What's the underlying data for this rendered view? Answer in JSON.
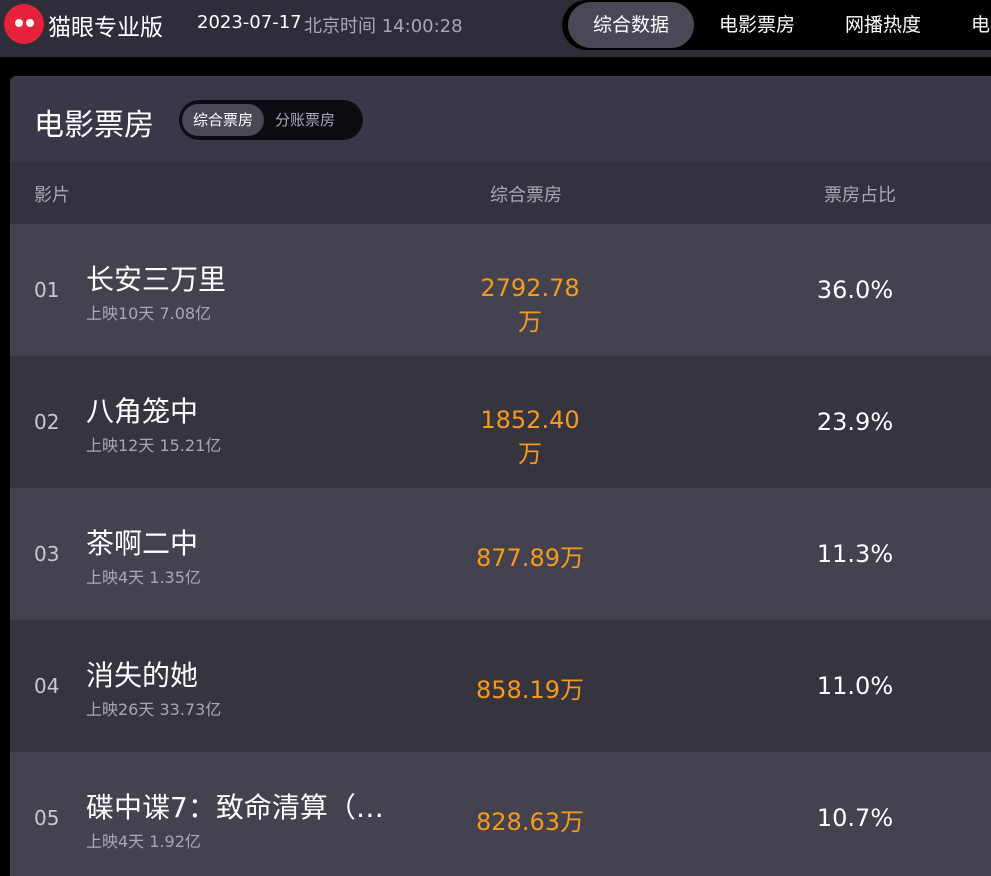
{
  "header": {
    "brand": "猫眼专业版",
    "date": "2023-07-17",
    "time": "北京时间 14:00:28",
    "nav": [
      {
        "label": "综合数据",
        "active": true
      },
      {
        "label": "电影票房"
      },
      {
        "label": "网播热度"
      },
      {
        "label": "电"
      }
    ]
  },
  "panel": {
    "title": "电影票房",
    "toggle": [
      "综合票房",
      "分账票房"
    ],
    "columns": [
      "影片",
      "综合票房",
      "票房占比"
    ],
    "rows": [
      {
        "rank": "01",
        "name": "长安三万里",
        "sub": "上映10天  7.08亿",
        "box": "2792.78万",
        "pct": "36.0%"
      },
      {
        "rank": "02",
        "name": "八角笼中",
        "sub": "上映12天  15.21亿",
        "box": "1852.40万",
        "pct": "23.9%"
      },
      {
        "rank": "03",
        "name": "茶啊二中",
        "sub": "上映4天  1.35亿",
        "box": "877.89万",
        "pct": "11.3%"
      },
      {
        "rank": "04",
        "name": "消失的她",
        "sub": "上映26天  33.73亿",
        "box": "858.19万",
        "pct": "11.0%"
      },
      {
        "rank": "05",
        "name": "碟中谍7：致命清算（…",
        "sub": "上映4天  1.92亿",
        "box": "828.63万",
        "pct": "10.7%"
      }
    ]
  },
  "colors": {
    "accent": "#f79a1b",
    "brand": "#e8213b"
  }
}
